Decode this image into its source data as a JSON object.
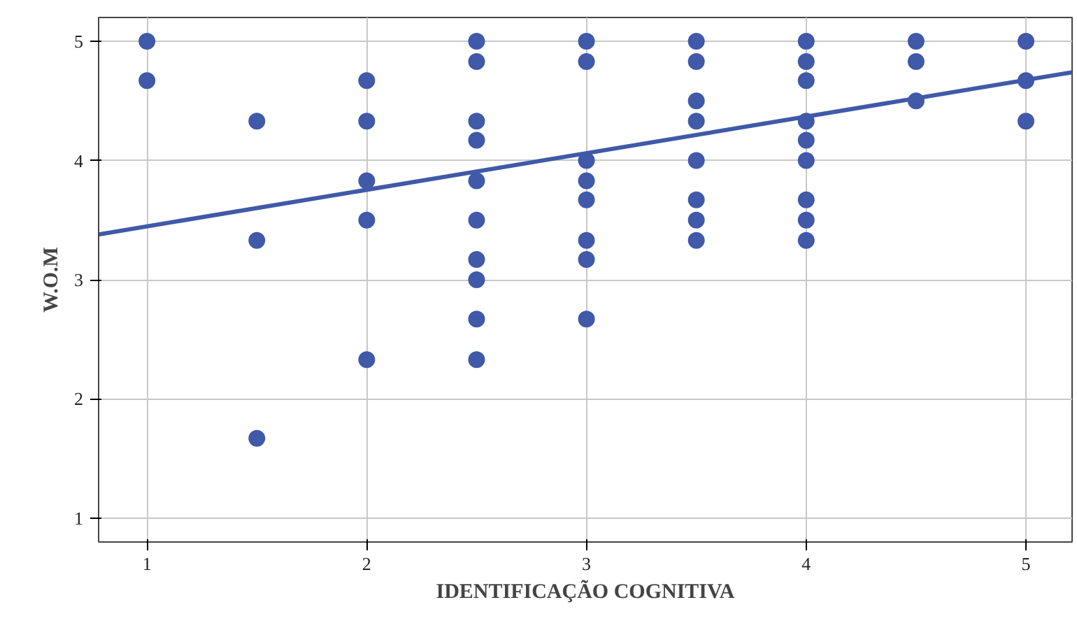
{
  "chart_data": {
    "type": "scatter",
    "xlabel": "IDENTIFICAÇÃO COGNITIVA",
    "ylabel": "W.O.M",
    "xlim": [
      0.78,
      5.21
    ],
    "ylim": [
      0.8,
      5.2
    ],
    "xticks": [
      1,
      2,
      3,
      4,
      5
    ],
    "yticks": [
      1,
      2,
      3,
      4,
      5
    ],
    "grid": true,
    "series": [
      {
        "marker": "circle",
        "color": "#4059a9",
        "x": [
          1,
          1,
          1.5,
          1.5,
          1.5,
          2,
          2,
          2,
          2,
          2,
          2.5,
          2.5,
          2.5,
          2.5,
          2.5,
          2.5,
          2.5,
          2.5,
          2.5,
          2.5,
          3,
          3,
          3,
          3,
          3,
          3,
          3,
          3,
          3.5,
          3.5,
          3.5,
          3.5,
          3.5,
          3.5,
          3.5,
          3.5,
          4,
          4,
          4,
          4,
          4,
          4,
          4,
          4,
          4,
          4.5,
          4.5,
          4.5,
          5,
          5,
          5
        ],
        "values": [
          5,
          4.67,
          4.33,
          3.33,
          1.67,
          4.67,
          4.33,
          3.83,
          3.5,
          2.33,
          5,
          4.83,
          4.33,
          4.17,
          3.83,
          3.5,
          3.17,
          3,
          2.67,
          2.33,
          5,
          4.83,
          4,
          3.83,
          3.67,
          3.33,
          3.17,
          2.67,
          5,
          4.83,
          4.5,
          4.33,
          4,
          3.67,
          3.5,
          3.33,
          5,
          4.83,
          4.67,
          4.33,
          4.17,
          4,
          3.67,
          3.5,
          3.33,
          5,
          4.83,
          4.5,
          5,
          4.67,
          4.33
        ]
      },
      {
        "type": "line",
        "marker": "none",
        "color": "#4059a9",
        "x": [
          0.78,
          5.21
        ],
        "values": [
          3.38,
          4.74
        ]
      }
    ]
  }
}
